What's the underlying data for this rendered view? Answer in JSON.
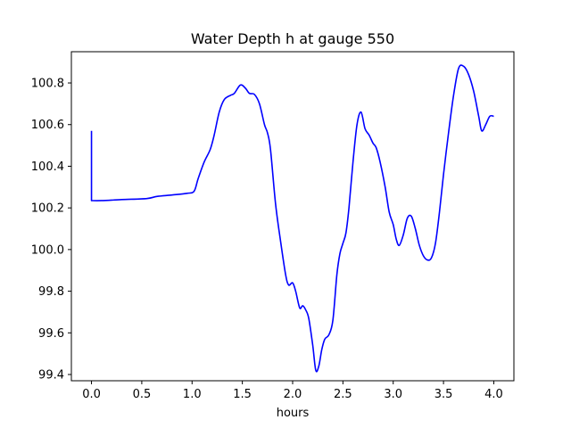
{
  "chart_data": {
    "type": "line",
    "title": "Water Depth h at gauge 550",
    "xlabel": "hours",
    "ylabel": "",
    "xlim": [
      -0.2,
      4.2
    ],
    "ylim": [
      99.37,
      100.95
    ],
    "xticks": [
      "0.0",
      "0.5",
      "1.0",
      "1.5",
      "2.0",
      "2.5",
      "3.0",
      "3.5",
      "4.0"
    ],
    "xtick_values": [
      0,
      0.5,
      1.0,
      1.5,
      2.0,
      2.5,
      3.0,
      3.5,
      4.0
    ],
    "yticks": [
      "99.4",
      "99.6",
      "99.8",
      "100.0",
      "100.2",
      "100.4",
      "100.6",
      "100.8"
    ],
    "ytick_values": [
      99.4,
      99.6,
      99.8,
      100.0,
      100.2,
      100.4,
      100.6,
      100.8
    ],
    "grid": false,
    "series": [
      {
        "color": "#0000ff",
        "x": [
          0,
          0,
          0.1,
          0.3,
          0.55,
          0.65,
          0.8,
          0.95,
          1.02,
          1.06,
          1.12,
          1.18,
          1.22,
          1.27,
          1.32,
          1.38,
          1.42,
          1.48,
          1.53,
          1.57,
          1.62,
          1.67,
          1.72,
          1.75,
          1.78,
          1.83,
          1.88,
          1.93,
          1.96,
          2.0,
          2.03,
          2.07,
          2.1,
          2.13,
          2.16,
          2.2,
          2.23,
          2.26,
          2.29,
          2.32,
          2.36,
          2.4,
          2.44,
          2.47,
          2.5,
          2.53,
          2.56,
          2.6,
          2.64,
          2.68,
          2.72,
          2.76,
          2.8,
          2.83,
          2.87,
          2.92,
          2.96,
          3.0,
          3.03,
          3.06,
          3.1,
          3.14,
          3.18,
          3.22,
          3.26,
          3.3,
          3.34,
          3.38,
          3.42,
          3.46,
          3.5,
          3.55,
          3.6,
          3.65,
          3.7,
          3.75,
          3.8,
          3.85,
          3.88,
          3.92,
          3.96,
          4.0
        ],
        "y": [
          100.57,
          100.235,
          100.235,
          100.24,
          100.245,
          100.255,
          100.262,
          100.27,
          100.28,
          100.34,
          100.42,
          100.48,
          100.55,
          100.66,
          100.72,
          100.74,
          100.75,
          100.79,
          100.775,
          100.75,
          100.745,
          100.7,
          100.6,
          100.56,
          100.48,
          100.22,
          100.04,
          99.88,
          99.83,
          99.84,
          99.8,
          99.72,
          99.73,
          99.71,
          99.67,
          99.54,
          99.42,
          99.44,
          99.52,
          99.57,
          99.59,
          99.66,
          99.88,
          99.98,
          100.03,
          100.08,
          100.2,
          100.42,
          100.6,
          100.66,
          100.58,
          100.55,
          100.51,
          100.49,
          100.42,
          100.3,
          100.18,
          100.12,
          100.05,
          100.02,
          100.07,
          100.15,
          100.16,
          100.1,
          100.02,
          99.97,
          99.95,
          99.96,
          100.03,
          100.18,
          100.36,
          100.56,
          100.74,
          100.87,
          100.88,
          100.84,
          100.76,
          100.64,
          100.57,
          100.6,
          100.64,
          100.64
        ]
      }
    ]
  }
}
